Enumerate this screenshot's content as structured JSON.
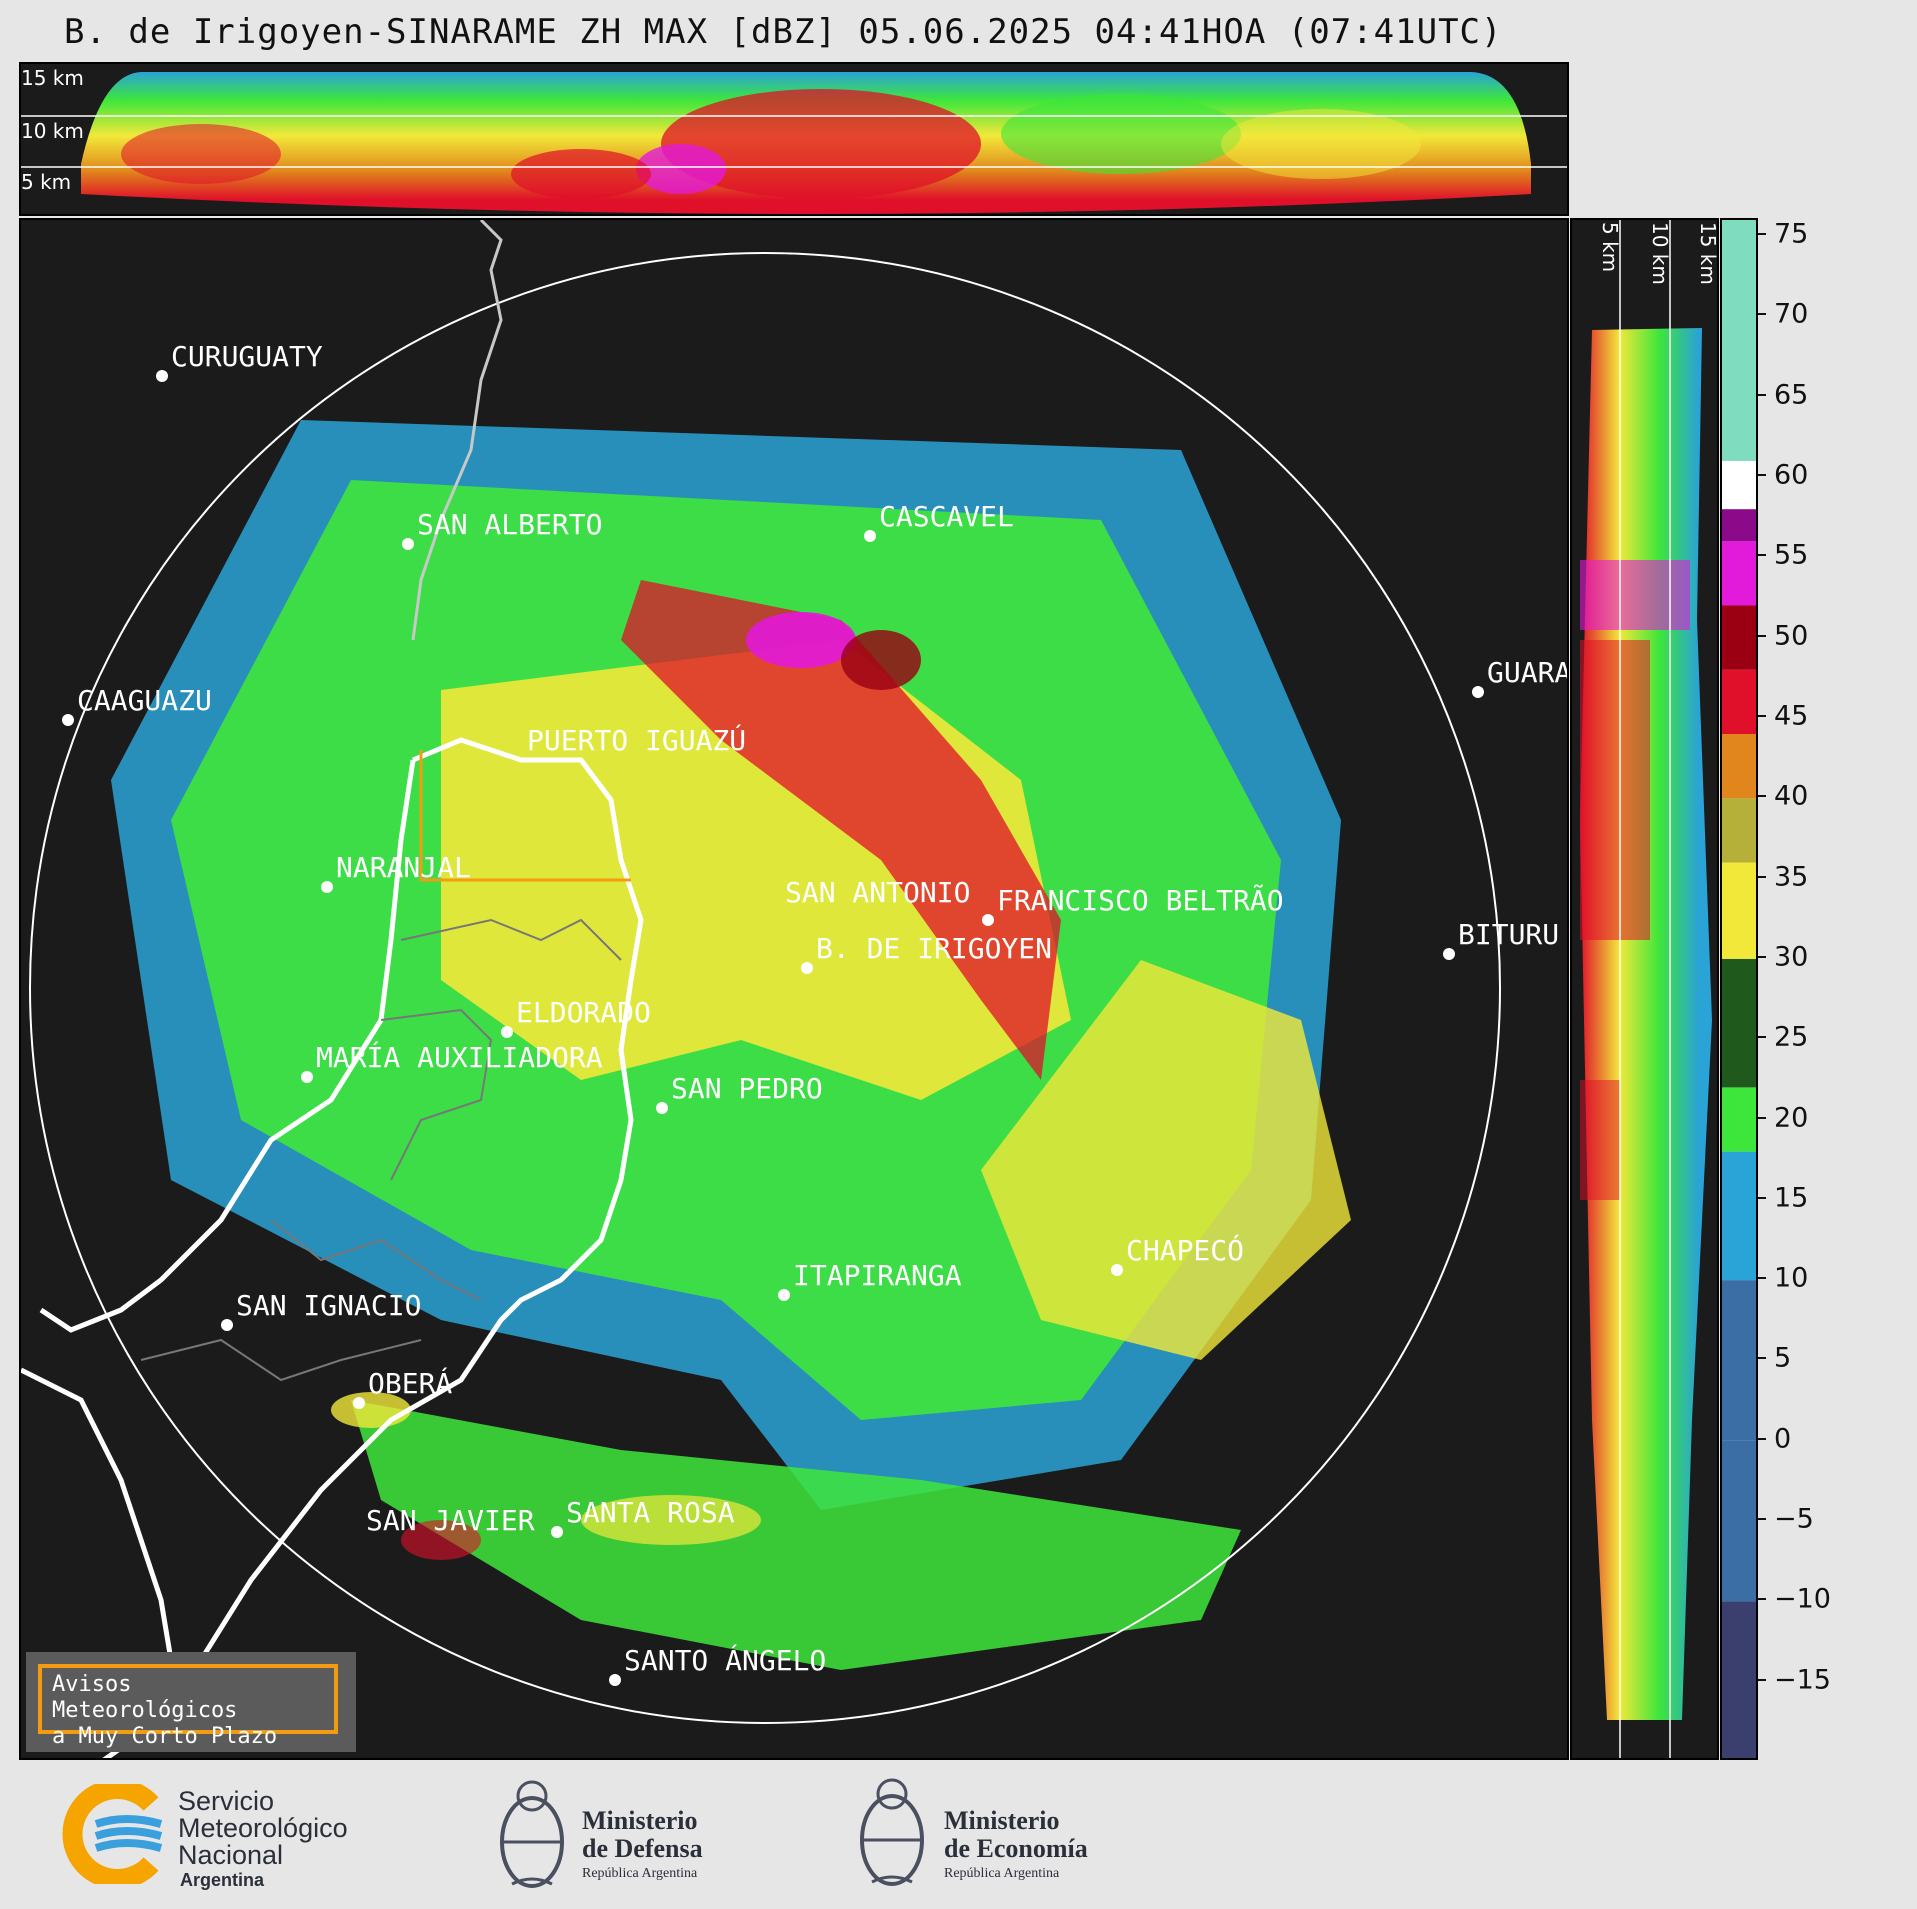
{
  "title": "B. de Irigoyen-SINARAME ZH MAX [dBZ] 05.06.2025 04:41HOA (07:41UTC)",
  "top_panel": {
    "km_labels": [
      "15 km",
      "10 km",
      "5 km"
    ]
  },
  "side_panel": {
    "km_labels": [
      "5 km",
      "10 km",
      "15 km"
    ]
  },
  "colorbar": {
    "ticks": [
      "75",
      "70",
      "65",
      "60",
      "55",
      "50",
      "45",
      "40",
      "35",
      "30",
      "25",
      "20",
      "15",
      "10",
      "5",
      "0",
      "−5",
      "−10",
      "−15"
    ],
    "tick_values": [
      75,
      70,
      65,
      60,
      55,
      50,
      45,
      40,
      35,
      30,
      25,
      20,
      15,
      10,
      5,
      0,
      -5,
      -10,
      -15
    ],
    "range": [
      -20,
      76
    ],
    "colors": {
      "low": "#3a3f6e",
      "blue_mid": "#3a6ea5",
      "blue_light": "#2aa3d6",
      "green_light": "#3ee63b",
      "green_dark": "#1f5a1c",
      "yellow": "#f2e83a",
      "olive": "#b5b03a",
      "orange": "#e0861c",
      "red": "#e0102a",
      "dark_red": "#9a0012",
      "magenta": "#e21ad9",
      "purple": "#8a0a8a",
      "white": "#ffffff",
      "mint": "#7fdcbf"
    }
  },
  "cities": [
    {
      "name": "CURUGUATY"
    },
    {
      "name": "SAN ALBERTO"
    },
    {
      "name": "CASCAVEL"
    },
    {
      "name": "CAAGUAZU"
    },
    {
      "name": "GUARA"
    },
    {
      "name": "PUERTO IGUAZÚ"
    },
    {
      "name": "NARANJAL"
    },
    {
      "name": "SAN ANTONIO"
    },
    {
      "name": "FRANCISCO BELTRÃO"
    },
    {
      "name": "BITURU"
    },
    {
      "name": "B. DE IRIGOYEN"
    },
    {
      "name": "ELDORADO"
    },
    {
      "name": "MARÍA AUXILIADORA"
    },
    {
      "name": "SAN PEDRO"
    },
    {
      "name": "CHAPECÓ"
    },
    {
      "name": "ITAPIRANGA"
    },
    {
      "name": "SAN IGNACIO"
    },
    {
      "name": "OBERÁ"
    },
    {
      "name": "SAN JAVIER"
    },
    {
      "name": "SANTA ROSA"
    },
    {
      "name": "SANTO ÁNGELO"
    }
  ],
  "warning_box": {
    "line1": "Avisos Meteorológicos",
    "line2": "a Muy Corto Plazo"
  },
  "logos": {
    "smn": {
      "line1": "Servicio",
      "line2": "Meteorológico",
      "line3": "Nacional",
      "line4": "Argentina"
    },
    "defensa": {
      "line1": "Ministerio",
      "line2": "de Defensa",
      "line3": "República Argentina"
    },
    "economia": {
      "line1": "Ministerio",
      "line2": "de Economía",
      "line3": "República Argentina"
    }
  }
}
